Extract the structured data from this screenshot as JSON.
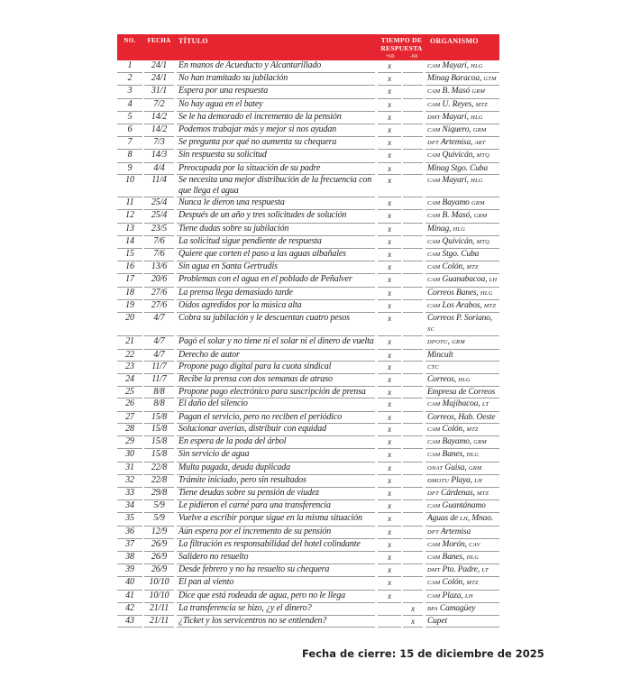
{
  "accent_color": "#e5252f",
  "header": {
    "no": "NO.",
    "date": "FECHA",
    "title": "TÍTULO",
    "time": "TIEMPO DE RESPUESTA",
    "plus60": "+60",
    "minus60": "-60",
    "org": "ORGANISMO"
  },
  "rows": [
    {
      "no": "1",
      "date": "24/1",
      "title": " En manos de Acueducto y Alcantarillado",
      "p": "x",
      "m": "",
      "org": "CAM Mayarí, HLG"
    },
    {
      "no": "2",
      "date": "24/1",
      "title": "No han tramitado su jubilación",
      "p": "x",
      "m": "",
      "org": "Minag Baracoa, GTM"
    },
    {
      "no": "3",
      "date": "31/1",
      "title": "Espera por una respuesta",
      "p": "x",
      "m": "",
      "org": "CAM B. Masó GRM"
    },
    {
      "no": "4",
      "date": "7/2",
      "title": "No hay agua en el batey",
      "p": "x",
      "m": "",
      "org": "CAM U. Reyes, MTZ"
    },
    {
      "no": "5",
      "date": "14/2",
      "title": "Se le ha demorado el incremento de la pensión",
      "p": "x",
      "m": "",
      "org": "DMT Mayarí, HLG"
    },
    {
      "no": "6",
      "date": "14/2",
      "title": "Podemos trabajar más y mejor si nos ayudan",
      "p": "x",
      "m": "",
      "org": "CAM Niquero, GRM"
    },
    {
      "no": "7",
      "date": "7/3",
      "title": "Se pregunta por qué no aumenta su chequera",
      "p": "x",
      "m": "",
      "org": "DPT Artemisa, ART"
    },
    {
      "no": "8",
      "date": "14/3",
      "title": "Sin respuesta su solicitud",
      "p": "x",
      "m": "",
      "org": "CAM Quivicán, MTQ"
    },
    {
      "no": "9",
      "date": "4/4",
      "title": "Preocupada por la situación de su padre",
      "p": "x",
      "m": "",
      "org": "Minag Stgo. Cuba"
    },
    {
      "no": "10",
      "date": "11/4",
      "title": "Se necesita una mejor distribución de la frecuencia con que llega el agua",
      "p": "x",
      "m": "",
      "org": "CAM Mayarí, HLG"
    },
    {
      "no": "11",
      "date": "25/4",
      "title": "Nunca le dieron una respuesta",
      "p": "x",
      "m": "",
      "org": "CAM Bayamo GRM"
    },
    {
      "no": "12",
      "date": "25/4",
      "title": "Después de un año y tres solicitudes de solución",
      "p": "x",
      "m": "",
      "org": "CAM B. Masó, GRM"
    },
    {
      "no": "13",
      "date": "23/5",
      "title": "Tiene dudas sobre su jubilación",
      "p": "x",
      "m": "",
      "org": "Minag, HLG"
    },
    {
      "no": "14",
      "date": "7/6",
      "title": "La solicitud sigue pendiente de respuesta",
      "p": "x",
      "m": "",
      "org": "CAM Quivicán, MTQ"
    },
    {
      "no": "15",
      "date": "7/6",
      "title": "Quiere que corten el paso a las aguas albañales",
      "p": "x",
      "m": "",
      "org": "CAM Stgo. Cuba"
    },
    {
      "no": "16",
      "date": "13/6",
      "title": "Sin agua en Santa Gertrudis",
      "p": "x",
      "m": "",
      "org": "CAM Colón, MTZ"
    },
    {
      "no": "17",
      "date": "20/6",
      "title": "Problemas con el agua en el poblado de Peñalver",
      "p": "x",
      "m": "",
      "org": "CAM Guanabacoa, LH"
    },
    {
      "no": "18",
      "date": "27/6",
      "title": "La prensa llega demasiado tarde",
      "p": "x",
      "m": "",
      "org": "Correos Banes, HLG"
    },
    {
      "no": "19",
      "date": "27/6",
      "title": "Oídos agredidos por la música alta",
      "p": "x",
      "m": "",
      "org": "CAM Los Arabos, MTZ"
    },
    {
      "no": "20",
      "date": "4/7",
      "title": "Cobra su jubilación y le descuentan cuatro pesos",
      "p": "x",
      "m": "",
      "org": "Correos P. Soriano, SC"
    },
    {
      "no": "21",
      "date": "4/7",
      "title": "Pagó el solar y no tiene ni el solar ni el dinero de vuelta",
      "p": "x",
      "m": "",
      "org": "DPOTU, GRM"
    },
    {
      "no": "22",
      "date": "4/7",
      "title": "Derecho de autor",
      "p": "x",
      "m": "",
      "org": "Mincult"
    },
    {
      "no": "23",
      "date": "11/7",
      "title": "Propone pago digital para la cuota sindical",
      "p": "x",
      "m": "",
      "org": "CTC"
    },
    {
      "no": "24",
      "date": "11/7",
      "title": "Recibe la prensa con dos semanas de atraso",
      "p": "x",
      "m": "",
      "org": "Correos, HLG"
    },
    {
      "no": "25",
      "date": "8/8",
      "title": "Propone pago electrónico para suscripción de prensa",
      "p": "x",
      "m": "",
      "org": "Empresa de Correos"
    },
    {
      "no": "26",
      "date": "8/8",
      "title": "El daño del silencio",
      "p": "x",
      "m": "",
      "org": "CAM Majibacoa, LT"
    },
    {
      "no": "27",
      "date": "15/8",
      "title": "Pagan el servicio, pero no reciben el periódico",
      "p": "x",
      "m": "",
      "org": "Correos, Hab. Oeste"
    },
    {
      "no": "28",
      "date": "15/8",
      "title": "Solucionar averías, distribuir con equidad",
      "p": "x",
      "m": "",
      "org": "CAM Colón, MTZ"
    },
    {
      "no": "29",
      "date": "15/8",
      "title": "En espera de la poda del árbol",
      "p": "x",
      "m": "",
      "org": "CAM Bayamo, GRM"
    },
    {
      "no": "30",
      "date": "15/8",
      "title": "Sin servicio de agua",
      "p": "x",
      "m": "",
      "org": "CAM Banes, HLG"
    },
    {
      "no": "31",
      "date": "22/8",
      "title": "Multa pagada, deuda duplicada",
      "p": "x",
      "m": "",
      "org": "ONAT Guisa, GRM"
    },
    {
      "no": "32",
      "date": "22/8",
      "title": "Trámite iniciado, pero sin resultados",
      "p": "x",
      "m": "",
      "org": "DMOTU Playa, LH"
    },
    {
      "no": "33",
      "date": "29/8",
      "title": "Tiene deudas sobre su pensión de viudez",
      "p": "x",
      "m": "",
      "org": "DPT Cárdenas, MTZ"
    },
    {
      "no": "34",
      "date": "5/9",
      "title": "Le pidieron el carné para una transferencia",
      "p": "x",
      "m": "",
      "org": "CAM Guantánamo"
    },
    {
      "no": "35",
      "date": "5/9",
      "title": "Vuelve a escribir porque sigue en la misma situación",
      "p": "x",
      "m": "",
      "org": "Aguas de LH, Mnao."
    },
    {
      "no": "36",
      "date": "12/9",
      "title": "Aún espera por el incremento de su pensión",
      "p": "x",
      "m": "",
      "org": "DPT Artemisa"
    },
    {
      "no": "37",
      "date": "26/9",
      "title": "La filtración es responsabilidad del hotel colindante",
      "p": "x",
      "m": "",
      "org": "CAM Morón, CAV"
    },
    {
      "no": "38",
      "date": "26/9",
      "title": "Salidero no resuelto",
      "p": "x",
      "m": "",
      "org": "CAM Banes, HLG"
    },
    {
      "no": "39",
      "date": "26/9",
      "title": "Desde febrero y  no ha resuelto su chequera",
      "p": "x",
      "m": "",
      "org": "DMT Pto. Padre, LT"
    },
    {
      "no": "40",
      "date": "10/10",
      "title": "El pan al viento",
      "p": "x",
      "m": "",
      "org": "CAM Colón, MTZ"
    },
    {
      "no": "41",
      "date": "10/10",
      "title": "Dice que está rodeada de agua, pero no le llega",
      "p": "x",
      "m": "",
      "org": "CAM Plaza, LH"
    },
    {
      "no": "42",
      "date": "21/11",
      "title": "La transferencia se hizo, ¿y el dinero?",
      "p": "",
      "m": "x",
      "org": "BPA Camagüey"
    },
    {
      "no": "43",
      "date": "21/11",
      "title": "¿Ticket y los servicentros no se entienden?",
      "p": "",
      "m": "x",
      "org": "Cupet"
    }
  ],
  "footer": "Fecha de cierre: 15 de diciembre de 2025"
}
